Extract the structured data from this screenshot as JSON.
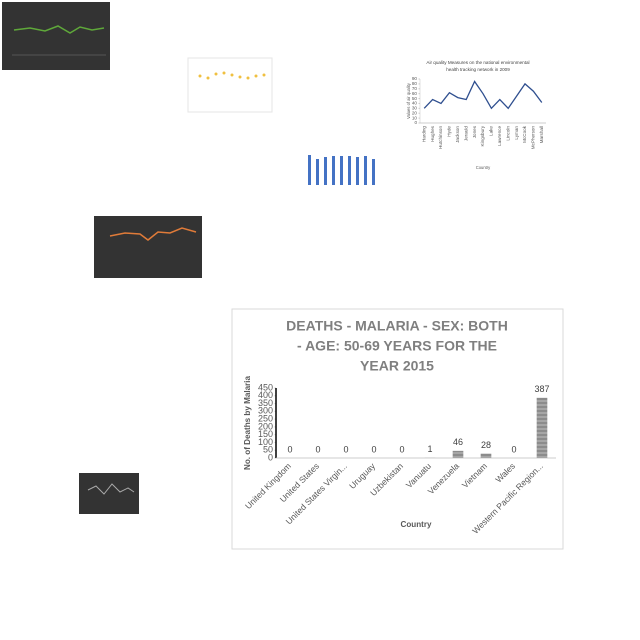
{
  "chart_data": [
    {
      "type": "line",
      "title": [
        "Air quality Measures on the national environmental",
        "health tracking network in 2009"
      ],
      "y_label": "Values of air quality",
      "x_label": "Country",
      "categories": [
        "Harding",
        "Hughes",
        "Hutchinson",
        "Hyde",
        "Jackson",
        "Jerauld",
        "Jones",
        "Kingsbury",
        "Lake",
        "Lawrence",
        "Lincoln",
        "Lyman",
        "McCook",
        "McPherson",
        "Marshall"
      ],
      "values": [
        30,
        48,
        40,
        62,
        52,
        48,
        85,
        60,
        30,
        48,
        30,
        55,
        80,
        65,
        42
      ],
      "color": "#2f4f8f",
      "ylim": [
        0,
        90
      ],
      "yticks": [
        0,
        10,
        20,
        30,
        40,
        50,
        60,
        70,
        80,
        90
      ]
    },
    {
      "type": "bar",
      "title": [
        "DEATHS - MALARIA - SEX: BOTH",
        "- AGE: 50-69 YEARS FOR THE",
        "YEAR 2015"
      ],
      "y_label": "No. of Deaths by Malaria",
      "x_label": "Country",
      "categories": [
        "United Kingdom",
        "United States",
        "United States Virgin...",
        "Uruguay",
        "Uzbekistan",
        "Vanuatu",
        "Venezuela",
        "Vietnam",
        "Wales",
        "Western Pacific Region..."
      ],
      "values": [
        0,
        0,
        0,
        0,
        0,
        1,
        46,
        28,
        0,
        387
      ],
      "color": "#8c8c8c",
      "ylim": [
        0,
        450
      ],
      "yticks": [
        0,
        50,
        100,
        150,
        200,
        250,
        300,
        350,
        400,
        450
      ]
    }
  ]
}
